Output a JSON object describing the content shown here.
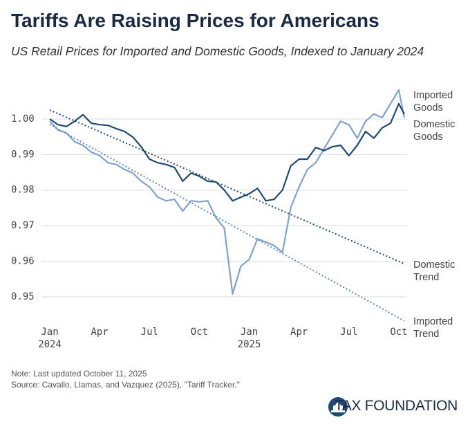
{
  "chart_data": {
    "type": "line",
    "title": "Tariffs Are Raising Prices for Americans",
    "subtitle": "US Retail Prices for Imported and Domestic Goods, Indexed to January 2024",
    "note": "Note: Last updated October 11, 2025",
    "source": "Source: Cavallo, Llamas, and Vazquez (2025), \"Tariff Tracker.\"",
    "brand": "TAX FOUNDATION",
    "xlim": [
      -0.5,
      21.5
    ],
    "xticks": [
      {
        "value": 0,
        "label": "Jan 2024"
      },
      {
        "value": 3,
        "label": "Apr"
      },
      {
        "value": 6,
        "label": "Jul"
      },
      {
        "value": 9,
        "label": "Oct"
      },
      {
        "value": 12,
        "label": "Jan 2025"
      },
      {
        "value": 15,
        "label": "Apr"
      },
      {
        "value": 18,
        "label": "Jul"
      },
      {
        "value": 21,
        "label": "Oct"
      }
    ],
    "ylim": [
      0.942,
      1.01
    ],
    "yticks": [
      0.95,
      0.96,
      0.97,
      0.98,
      0.99,
      {
        "value": 1,
        "label": "1.00"
      }
    ],
    "grid": true,
    "x": [
      0,
      0.5,
      1,
      1.5,
      2,
      2.5,
      3,
      3.5,
      4,
      4.5,
      5,
      5.5,
      6,
      6.5,
      7,
      7.5,
      8,
      8.5,
      9,
      9.5,
      10,
      10.5,
      11,
      11.5,
      12,
      12.5,
      13,
      13.5,
      14,
      14.5,
      15,
      15.5,
      16,
      16.5,
      17,
      17.5,
      18,
      18.5,
      19,
      19.5,
      20,
      20.5,
      21,
      21.33
    ],
    "series": [
      {
        "name": "Imported Goods",
        "color": "#7ea2d0",
        "values": [
          0.9994,
          0.9969,
          0.9961,
          0.9936,
          0.9926,
          0.9907,
          0.9897,
          0.9877,
          0.9872,
          0.9858,
          0.9848,
          0.9825,
          0.9809,
          0.978,
          0.977,
          0.9774,
          0.9741,
          0.977,
          0.9767,
          0.977,
          0.9722,
          0.9693,
          0.9508,
          0.9586,
          0.9605,
          0.9663,
          0.9654,
          0.9644,
          0.9625,
          0.9751,
          0.9809,
          0.9858,
          0.9877,
          0.9916,
          0.9955,
          0.9994,
          0.9984,
          0.9946,
          0.9994,
          1.0014,
          1.0004,
          1.0043,
          1.0082,
          1.0004
        ]
      },
      {
        "name": "Domestic Goods",
        "color": "#1d4a74",
        "values": [
          1.0,
          0.9984,
          0.9979,
          0.9994,
          1.0012,
          0.9988,
          0.9984,
          0.9982,
          0.9973,
          0.9965,
          0.9949,
          0.9922,
          0.9887,
          0.9877,
          0.9872,
          0.9864,
          0.9825,
          0.9848,
          0.9839,
          0.9825,
          0.9823,
          0.98,
          0.977,
          0.978,
          0.979,
          0.9805,
          0.977,
          0.9774,
          0.98,
          0.9868,
          0.9887,
          0.9887,
          0.992,
          0.9911,
          0.9922,
          0.9926,
          0.9897,
          0.9926,
          0.9965,
          0.9946,
          0.9975,
          0.9988,
          1.0043,
          1.0014
        ]
      },
      {
        "name": "Domestic Trend",
        "color": "#1d4a74",
        "dashed": true,
        "x": [
          0,
          21.33
        ],
        "values": [
          1.0025,
          0.9593
        ]
      },
      {
        "name": "Imported Trend",
        "color": "#5f88bd",
        "dashed": true,
        "x": [
          0,
          21.33
        ],
        "values": [
          0.9985,
          0.9432
        ]
      }
    ]
  }
}
